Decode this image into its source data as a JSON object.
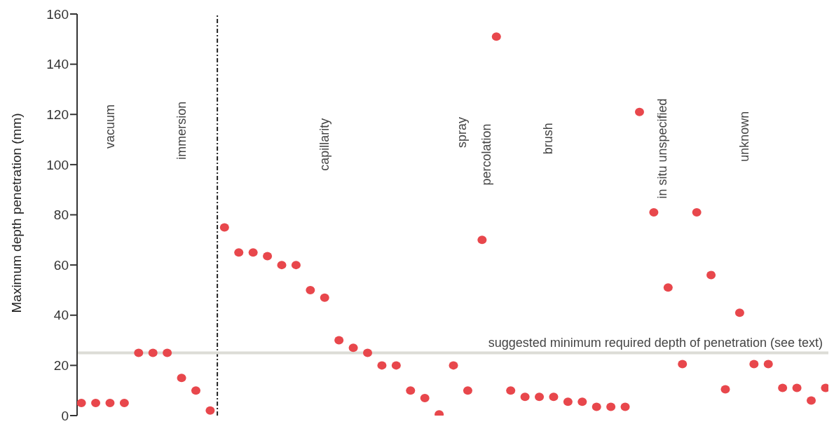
{
  "chart_data": {
    "type": "scatter",
    "ylabel": "Maximum depth penetration (mm)",
    "categories": [
      null,
      null,
      null,
      null,
      null,
      null,
      null,
      null,
      null,
      null,
      null,
      null,
      null,
      null,
      null,
      null,
      null,
      null,
      null,
      null,
      null,
      null,
      null,
      null,
      null,
      null,
      null,
      null,
      null,
      null,
      null,
      null,
      null,
      null,
      null,
      null,
      null,
      null,
      null,
      null,
      null,
      null,
      null,
      null,
      null,
      null,
      null,
      null,
      null,
      null,
      null,
      null,
      null
    ],
    "series": [
      {
        "color": "#e8474c",
        "values": [
          5,
          5,
          5,
          5,
          25,
          25,
          25,
          15,
          10,
          2,
          75,
          65,
          65,
          63.5,
          60,
          60,
          50,
          47,
          30,
          27,
          25,
          20,
          20,
          10,
          7,
          0.5,
          20,
          10,
          70,
          151,
          10,
          7.5,
          7.5,
          7.5,
          5.5,
          5.5,
          3.5,
          3.5,
          3.5,
          121,
          81,
          51,
          20.5,
          81,
          56,
          10.5,
          41,
          20.5,
          20.5,
          11,
          11,
          6,
          11
        ]
      }
    ],
    "ylim": [
      0,
      160
    ],
    "yticks": [
      0,
      20,
      40,
      60,
      80,
      100,
      120,
      140,
      160
    ],
    "tick_labels": "y",
    "grid": false,
    "legend": false,
    "marker": "circle",
    "ref_lines": [
      {
        "axis": "y",
        "value": 25,
        "label": "suggested minimum required depth of penetration (see text)",
        "color": "#dcdcd6",
        "line_style": "solid"
      }
    ],
    "annotations": [
      "vacuum",
      "immersion",
      "capillarity",
      "spray",
      "percolation",
      "brush",
      "in situ unspecified",
      "unknown"
    ]
  }
}
